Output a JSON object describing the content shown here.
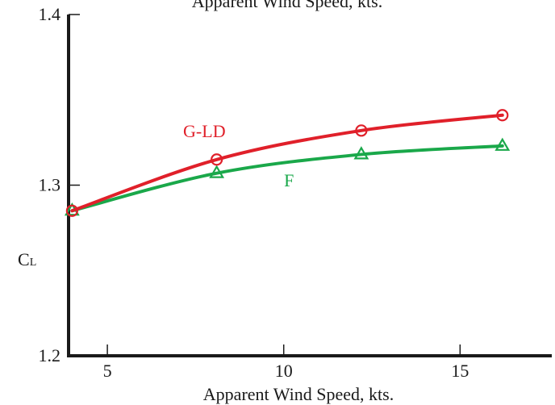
{
  "chart_data": {
    "type": "line",
    "title": "Apparent Wind Speed, kts.",
    "xlabel": "Apparent Wind Speed, kts.",
    "ylabel": {
      "main": "C",
      "sub": "L"
    },
    "xlim": [
      3.9,
      17.6
    ],
    "ylim": [
      1.2,
      1.4
    ],
    "xticks": [
      {
        "value": 5,
        "label": "5"
      },
      {
        "value": 10,
        "label": "10"
      },
      {
        "value": 15,
        "label": "15"
      }
    ],
    "yticks": [
      {
        "value": 1.2,
        "label": "1.2"
      },
      {
        "value": 1.3,
        "label": "1.3"
      },
      {
        "value": 1.4,
        "label": "1.4"
      }
    ],
    "grid": false,
    "series": [
      {
        "name": "G-LD",
        "color": "#e0202a",
        "marker": "circle",
        "label_at": {
          "x": 7.75,
          "y": 1.332
        },
        "points": [
          {
            "x": 4.0,
            "y": 1.285
          },
          {
            "x": 8.1,
            "y": 1.315
          },
          {
            "x": 12.2,
            "y": 1.332
          },
          {
            "x": 16.2,
            "y": 1.341
          }
        ]
      },
      {
        "name": "F",
        "color": "#1aa84a",
        "marker": "triangle",
        "label_at": {
          "x": 10.15,
          "y": 1.303
        },
        "points": [
          {
            "x": 4.0,
            "y": 1.285
          },
          {
            "x": 8.1,
            "y": 1.307
          },
          {
            "x": 12.2,
            "y": 1.318
          },
          {
            "x": 16.2,
            "y": 1.323
          }
        ]
      }
    ]
  }
}
